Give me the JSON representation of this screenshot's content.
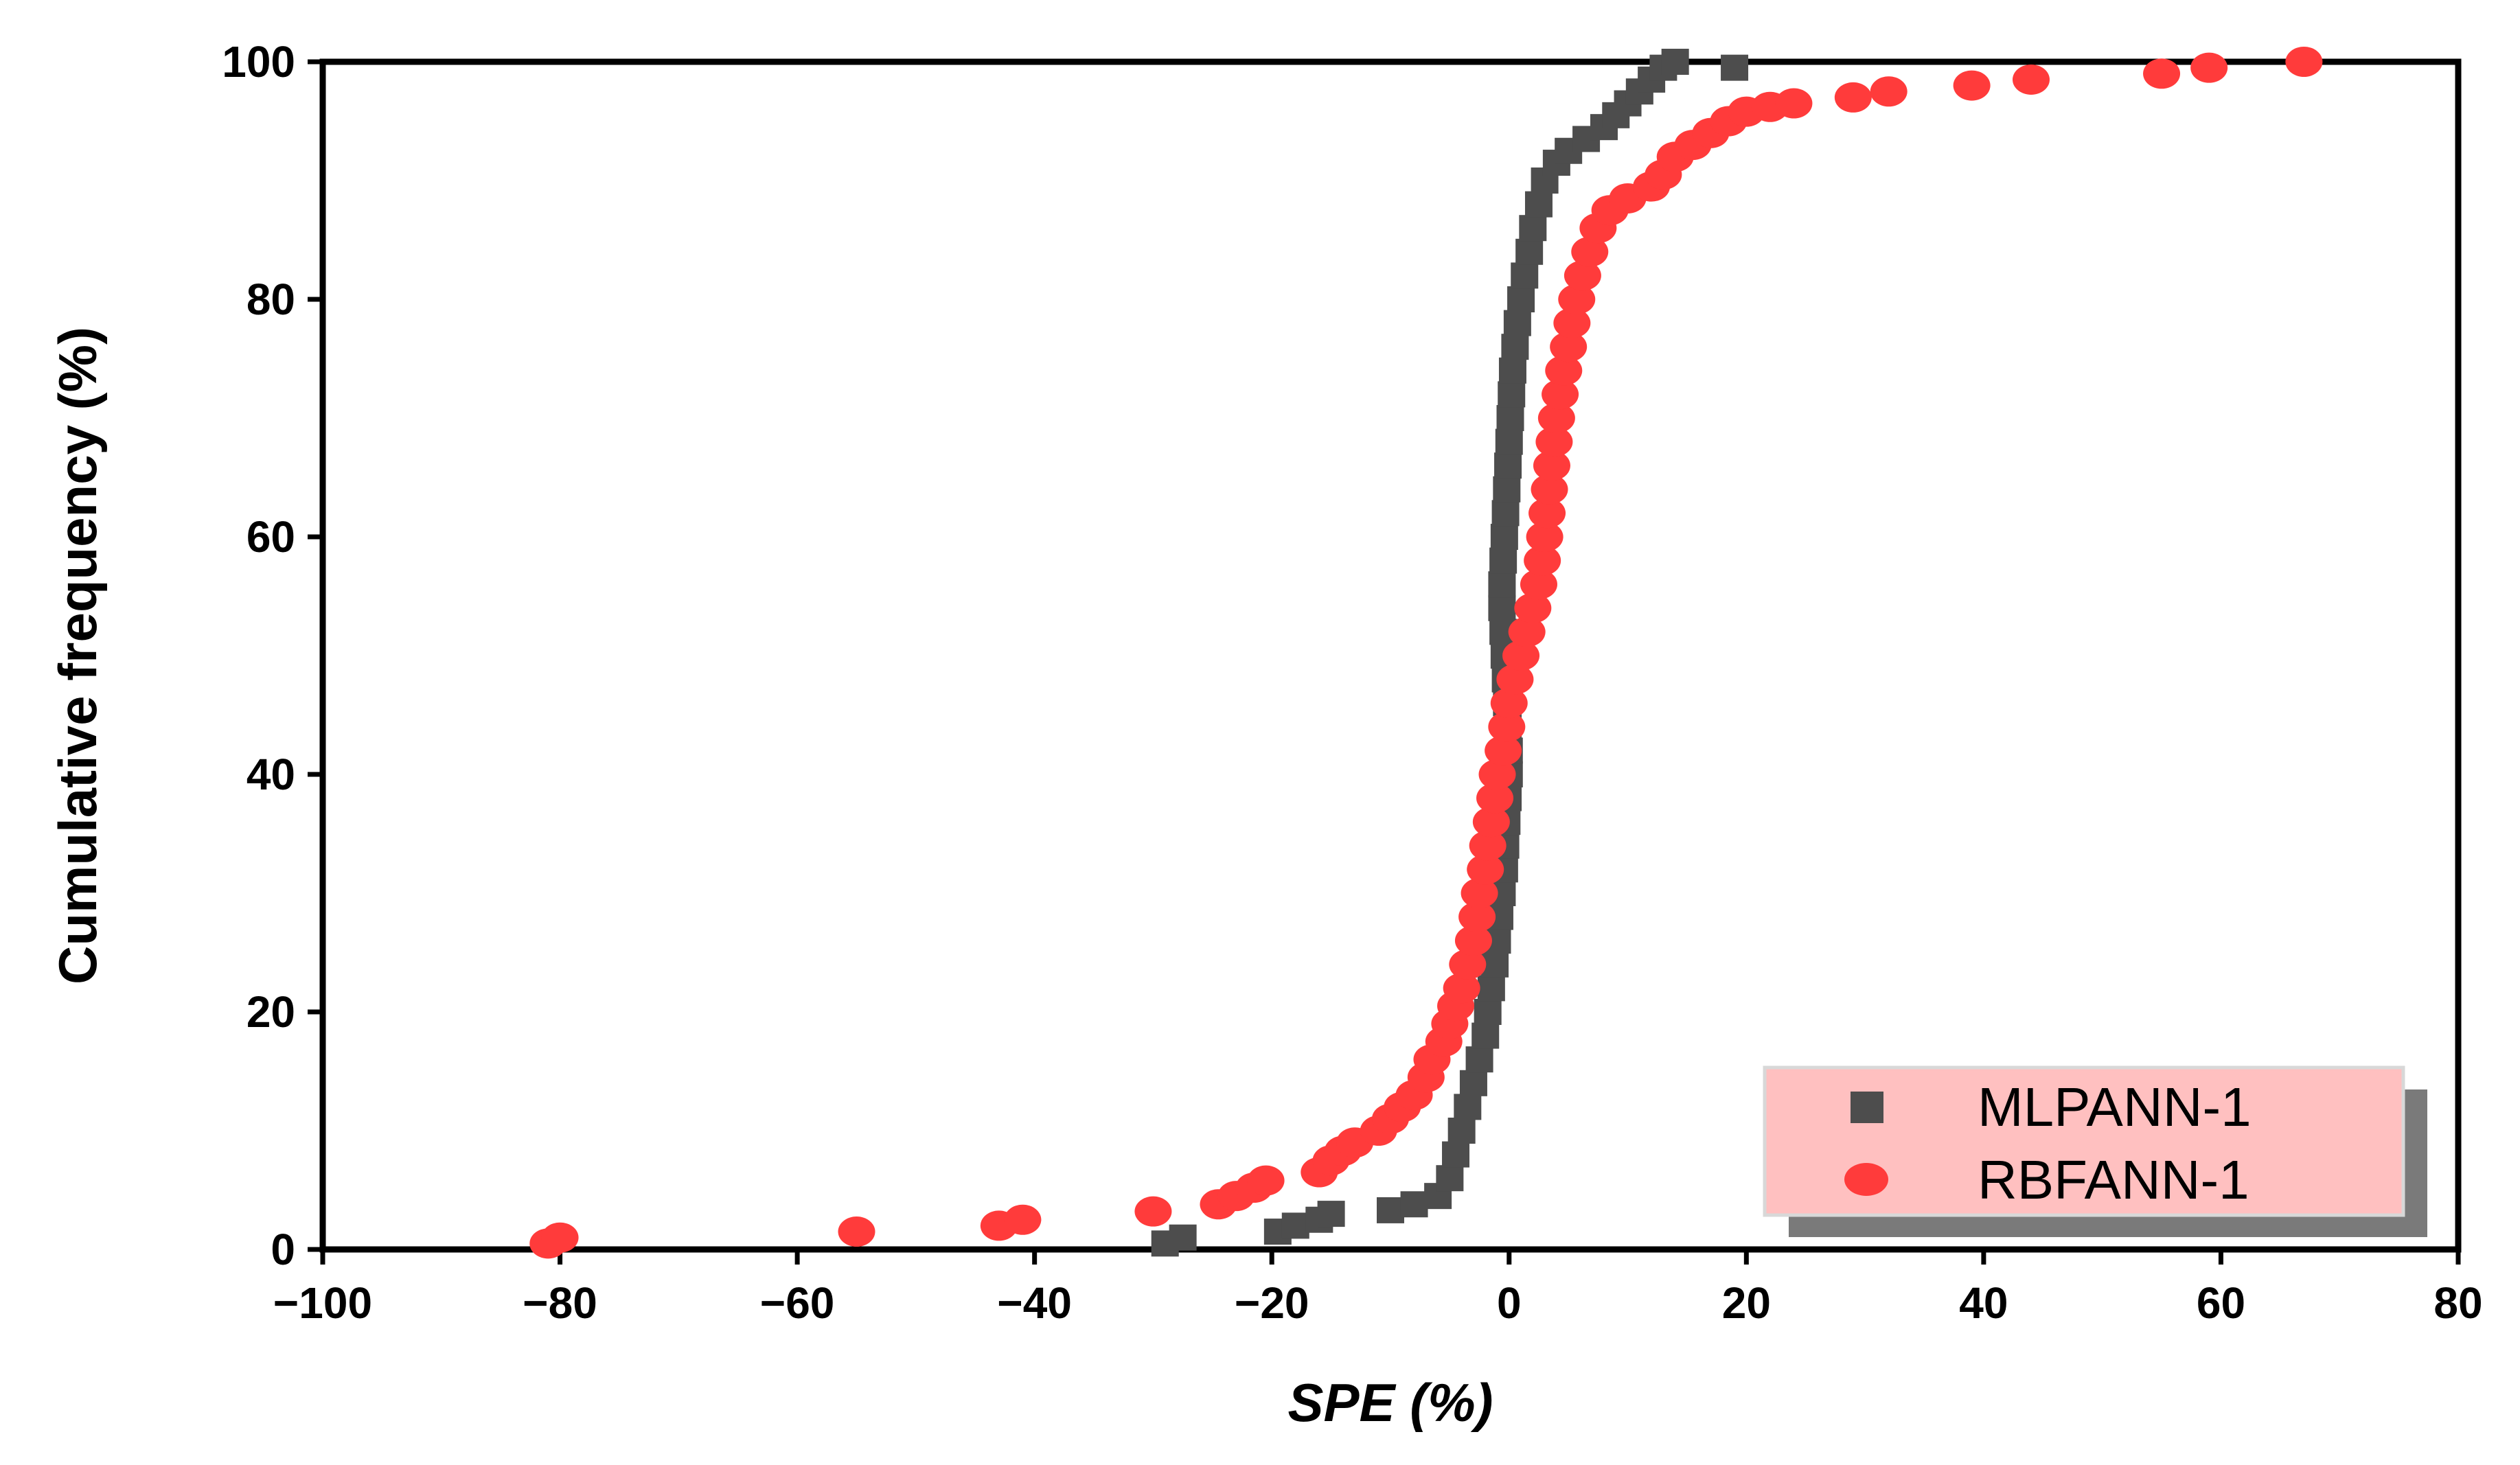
{
  "chart_data": {
    "type": "scatter",
    "title": "",
    "xlabel": "SPE (%)",
    "ylabel": "Cumulative frequency (%)",
    "xlim": [
      -100,
      80
    ],
    "ylim": [
      0,
      100
    ],
    "xticks": [
      -100,
      -80,
      -60,
      -40,
      -20,
      0,
      20,
      40,
      60,
      80
    ],
    "yticks": [
      0,
      20,
      40,
      60,
      80,
      100
    ],
    "xtick_labels": [
      "−100",
      "−80",
      "−60",
      "−40",
      "−20",
      "0",
      "20",
      "40",
      "60",
      "80"
    ],
    "ytick_labels": [
      "0",
      "20",
      "40",
      "60",
      "80",
      "100"
    ],
    "legend_position": "bottom-right",
    "series": [
      {
        "name": "MLPANN-1",
        "marker": "square",
        "color": "#4d4d4d",
        "points": [
          [
            -29,
            0.5
          ],
          [
            -27.5,
            1
          ],
          [
            -19.5,
            1.5
          ],
          [
            -18,
            2
          ],
          [
            -16,
            2.5
          ],
          [
            -15,
            3
          ],
          [
            -10,
            3.3
          ],
          [
            -8,
            3.8
          ],
          [
            -6,
            4.5
          ],
          [
            -5,
            6
          ],
          [
            -4.5,
            8
          ],
          [
            -4,
            10
          ],
          [
            -3.5,
            12
          ],
          [
            -3,
            14
          ],
          [
            -2.5,
            16
          ],
          [
            -2,
            18
          ],
          [
            -1.8,
            20
          ],
          [
            -1.5,
            22
          ],
          [
            -1.2,
            24
          ],
          [
            -1,
            26
          ],
          [
            -0.8,
            28
          ],
          [
            -0.6,
            30
          ],
          [
            -0.4,
            32
          ],
          [
            -0.3,
            34
          ],
          [
            -0.2,
            36
          ],
          [
            -0.1,
            38
          ],
          [
            0,
            40
          ],
          [
            0,
            42
          ],
          [
            -0.1,
            44
          ],
          [
            -0.2,
            46
          ],
          [
            -0.3,
            48
          ],
          [
            -0.4,
            50
          ],
          [
            -0.5,
            52
          ],
          [
            -0.6,
            54
          ],
          [
            -0.6,
            56
          ],
          [
            -0.5,
            58
          ],
          [
            -0.4,
            60
          ],
          [
            -0.3,
            62
          ],
          [
            -0.2,
            64
          ],
          [
            -0.1,
            66
          ],
          [
            0,
            68
          ],
          [
            0.1,
            70
          ],
          [
            0.2,
            72
          ],
          [
            0.3,
            74
          ],
          [
            0.5,
            76
          ],
          [
            0.7,
            78
          ],
          [
            1,
            80
          ],
          [
            1.3,
            82
          ],
          [
            1.7,
            84
          ],
          [
            2,
            86
          ],
          [
            2.5,
            88
          ],
          [
            3,
            90
          ],
          [
            4,
            91.5
          ],
          [
            5,
            92.5
          ],
          [
            6.5,
            93.5
          ],
          [
            8,
            94.5
          ],
          [
            9,
            95.5
          ],
          [
            10,
            96.5
          ],
          [
            11,
            97.5
          ],
          [
            12,
            98.5
          ],
          [
            13,
            99.5
          ],
          [
            14,
            100
          ],
          [
            19,
            99.5
          ]
        ]
      },
      {
        "name": "RBFANN-1",
        "marker": "circle",
        "color": "#ff3b3b",
        "points": [
          [
            -81,
            0.5
          ],
          [
            -80,
            1
          ],
          [
            -55,
            1.5
          ],
          [
            -43,
            2
          ],
          [
            -41,
            2.5
          ],
          [
            -30,
            3.2
          ],
          [
            -24.5,
            3.8
          ],
          [
            -23,
            4.5
          ],
          [
            -21.5,
            5.2
          ],
          [
            -20.5,
            5.8
          ],
          [
            -16,
            6.5
          ],
          [
            -15,
            7.5
          ],
          [
            -14,
            8.3
          ],
          [
            -13,
            9
          ],
          [
            -11,
            10
          ],
          [
            -10,
            11
          ],
          [
            -9,
            12
          ],
          [
            -8,
            13
          ],
          [
            -7,
            14.5
          ],
          [
            -6.5,
            16
          ],
          [
            -5.5,
            17.5
          ],
          [
            -5,
            19
          ],
          [
            -4.5,
            20.5
          ],
          [
            -4,
            22
          ],
          [
            -3.5,
            24
          ],
          [
            -3,
            26
          ],
          [
            -2.7,
            28
          ],
          [
            -2.5,
            30
          ],
          [
            -2,
            32
          ],
          [
            -1.8,
            34
          ],
          [
            -1.5,
            36
          ],
          [
            -1.2,
            38
          ],
          [
            -1,
            40
          ],
          [
            -0.5,
            42
          ],
          [
            -0.2,
            44
          ],
          [
            0,
            46
          ],
          [
            0.5,
            48
          ],
          [
            1,
            50
          ],
          [
            1.5,
            52
          ],
          [
            2,
            54
          ],
          [
            2.5,
            56
          ],
          [
            2.8,
            58
          ],
          [
            3,
            60
          ],
          [
            3.2,
            62
          ],
          [
            3.4,
            64
          ],
          [
            3.6,
            66
          ],
          [
            3.8,
            68
          ],
          [
            4,
            70
          ],
          [
            4.3,
            72
          ],
          [
            4.6,
            74
          ],
          [
            5,
            76
          ],
          [
            5.3,
            78
          ],
          [
            5.7,
            80
          ],
          [
            6.2,
            82
          ],
          [
            6.8,
            84
          ],
          [
            7.5,
            86
          ],
          [
            8.5,
            87.5
          ],
          [
            10,
            88.5
          ],
          [
            12,
            89.5
          ],
          [
            13,
            90.5
          ],
          [
            14,
            92
          ],
          [
            15.5,
            93
          ],
          [
            17,
            94
          ],
          [
            18.5,
            95
          ],
          [
            20,
            95.8
          ],
          [
            22,
            96.2
          ],
          [
            24,
            96.5
          ],
          [
            29,
            97
          ],
          [
            32,
            97.5
          ],
          [
            39,
            98
          ],
          [
            44,
            98.5
          ],
          [
            55,
            99
          ],
          [
            59,
            99.5
          ],
          [
            67,
            100
          ]
        ]
      }
    ]
  }
}
